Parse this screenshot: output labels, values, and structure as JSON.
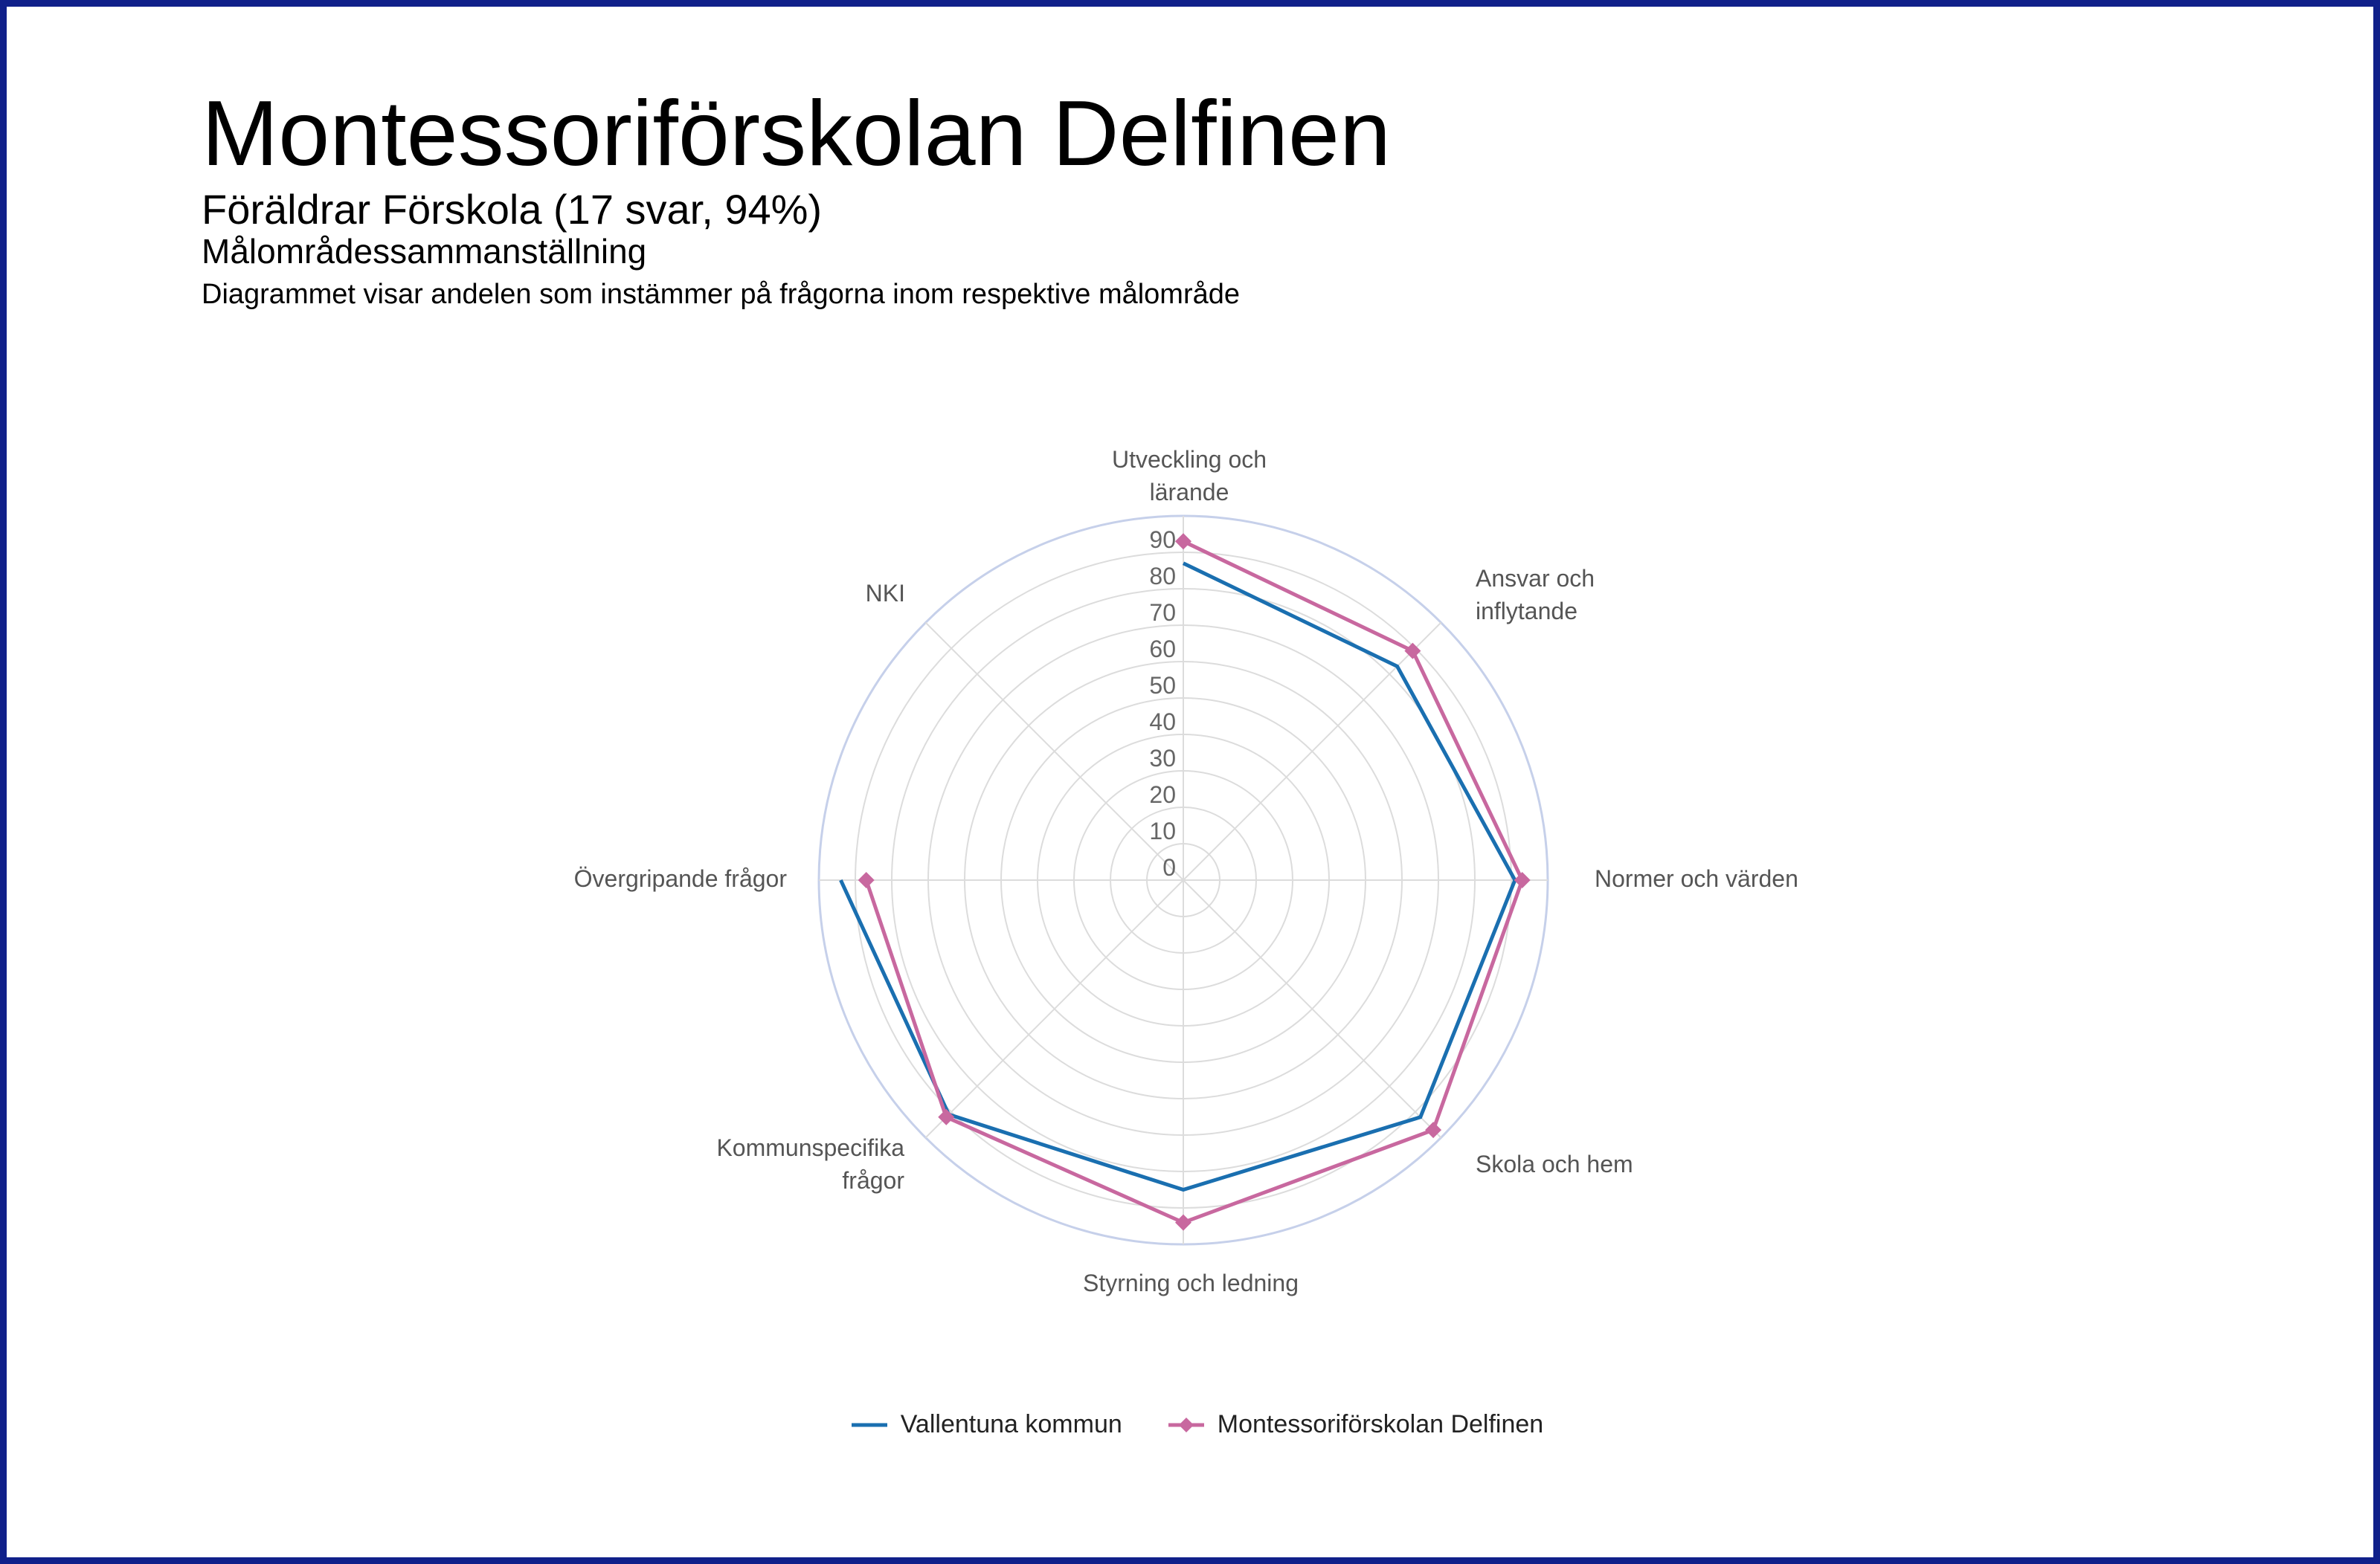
{
  "header": {
    "title": "Montessoriförskolan Delfinen",
    "subtitle": "Föräldrar Förskola  (17 svar, 94%)",
    "section": "Målområdessammanställning",
    "description": "Diagrammet visar andelen som instämmer på frågorna inom respektive målområde"
  },
  "chart_data": {
    "type": "radar",
    "axes": [
      [
        "Utveckling och",
        "lärande"
      ],
      [
        "Ansvar och",
        "inflytande"
      ],
      [
        "Normer och värden"
      ],
      [
        "Skola och hem"
      ],
      [
        "Styrning och ledning"
      ],
      [
        "Kommunspecifika",
        "frågor"
      ],
      [
        "Övergripande frågor"
      ],
      [
        "NKI"
      ]
    ],
    "rlim": [
      0,
      100
    ],
    "ticks": [
      "0",
      "10",
      "20",
      "30",
      "40",
      "50",
      "60",
      "70",
      "80",
      "90"
    ],
    "grid": true,
    "legend_position": "bottom",
    "series": [
      {
        "name": "Vallentuna kommun",
        "color": "#1a6fb0",
        "marker": "none",
        "values": [
          87,
          83,
          91,
          92,
          85,
          91,
          94,
          null
        ]
      },
      {
        "name": "Montessoriförskolan Delfinen",
        "color": "#c8689f",
        "marker": "diamond",
        "values": [
          93,
          89,
          93,
          97,
          94,
          92,
          87,
          null
        ]
      }
    ]
  }
}
